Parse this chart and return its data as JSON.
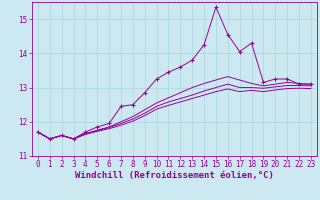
{
  "xlabel": "Windchill (Refroidissement éolien,°C)",
  "background_color": "#cce8f0",
  "line_color": "#990099",
  "x_data": [
    0,
    1,
    2,
    3,
    4,
    5,
    6,
    7,
    8,
    9,
    10,
    11,
    12,
    13,
    14,
    15,
    16,
    17,
    18,
    19,
    20,
    21,
    22,
    23
  ],
  "y_main": [
    11.7,
    11.5,
    11.6,
    11.5,
    11.7,
    11.85,
    11.95,
    12.45,
    12.5,
    12.85,
    13.25,
    13.45,
    13.6,
    13.8,
    14.25,
    15.35,
    14.55,
    14.05,
    14.3,
    13.15,
    13.25,
    13.25,
    13.1,
    13.1
  ],
  "y_line1": [
    11.7,
    11.5,
    11.6,
    11.5,
    11.65,
    11.75,
    11.85,
    12.0,
    12.15,
    12.35,
    12.55,
    12.7,
    12.85,
    13.0,
    13.12,
    13.22,
    13.32,
    13.22,
    13.12,
    13.05,
    13.1,
    13.15,
    13.12,
    13.1
  ],
  "y_line2": [
    11.7,
    11.5,
    11.6,
    11.5,
    11.65,
    11.75,
    11.83,
    11.95,
    12.08,
    12.25,
    12.45,
    12.58,
    12.68,
    12.78,
    12.9,
    13.0,
    13.1,
    13.0,
    13.0,
    12.98,
    13.02,
    13.06,
    13.06,
    13.05
  ],
  "y_line3": [
    11.7,
    11.5,
    11.6,
    11.5,
    11.63,
    11.72,
    11.8,
    11.9,
    12.02,
    12.18,
    12.37,
    12.48,
    12.58,
    12.68,
    12.78,
    12.88,
    12.96,
    12.88,
    12.92,
    12.88,
    12.93,
    12.97,
    12.98,
    12.97
  ],
  "xlim": [
    -0.5,
    23.5
  ],
  "ylim": [
    11.0,
    15.5
  ],
  "yticks": [
    11,
    12,
    13,
    14,
    15
  ],
  "xticks": [
    0,
    1,
    2,
    3,
    4,
    5,
    6,
    7,
    8,
    9,
    10,
    11,
    12,
    13,
    14,
    15,
    16,
    17,
    18,
    19,
    20,
    21,
    22,
    23
  ],
  "grid_color": "#aad4e0",
  "font_color": "#990099",
  "tick_fontsize": 5.5,
  "xlabel_fontsize": 6.5
}
